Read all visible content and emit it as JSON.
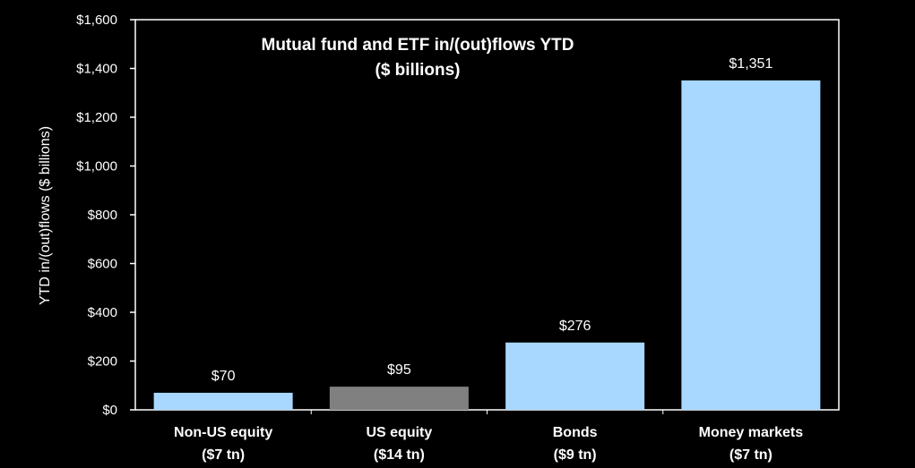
{
  "chart_data": {
    "type": "bar",
    "title": [
      "Mutual fund and ETF in/(out)flows YTD",
      "($ billions)"
    ],
    "ylabel": "YTD in/(out)flows ($ billions)",
    "xlabel": "",
    "ylim": [
      0,
      1600
    ],
    "yticks": [
      0,
      200,
      400,
      600,
      800,
      1000,
      1200,
      1400,
      1600
    ],
    "ytick_labels": [
      "$0",
      "$200",
      "$400",
      "$600",
      "$800",
      "$1,000",
      "$1,200",
      "$1,400",
      "$1,600"
    ],
    "grid": false,
    "legend": "none",
    "categories": [
      [
        "Non-US equity",
        "($7 tn)"
      ],
      [
        "US equity",
        "($14 tn)"
      ],
      [
        "Bonds",
        "($9 tn)"
      ],
      [
        "Money markets",
        "($7 tn)"
      ]
    ],
    "values": [
      70,
      95,
      276,
      1351
    ],
    "value_labels": [
      "$70",
      "$95",
      "$276",
      "$1,351"
    ],
    "colors": [
      "#a8d8ff",
      "#808080",
      "#a8d8ff",
      "#a8d8ff"
    ],
    "background": "#000000",
    "axis_color": "#ffffff"
  }
}
